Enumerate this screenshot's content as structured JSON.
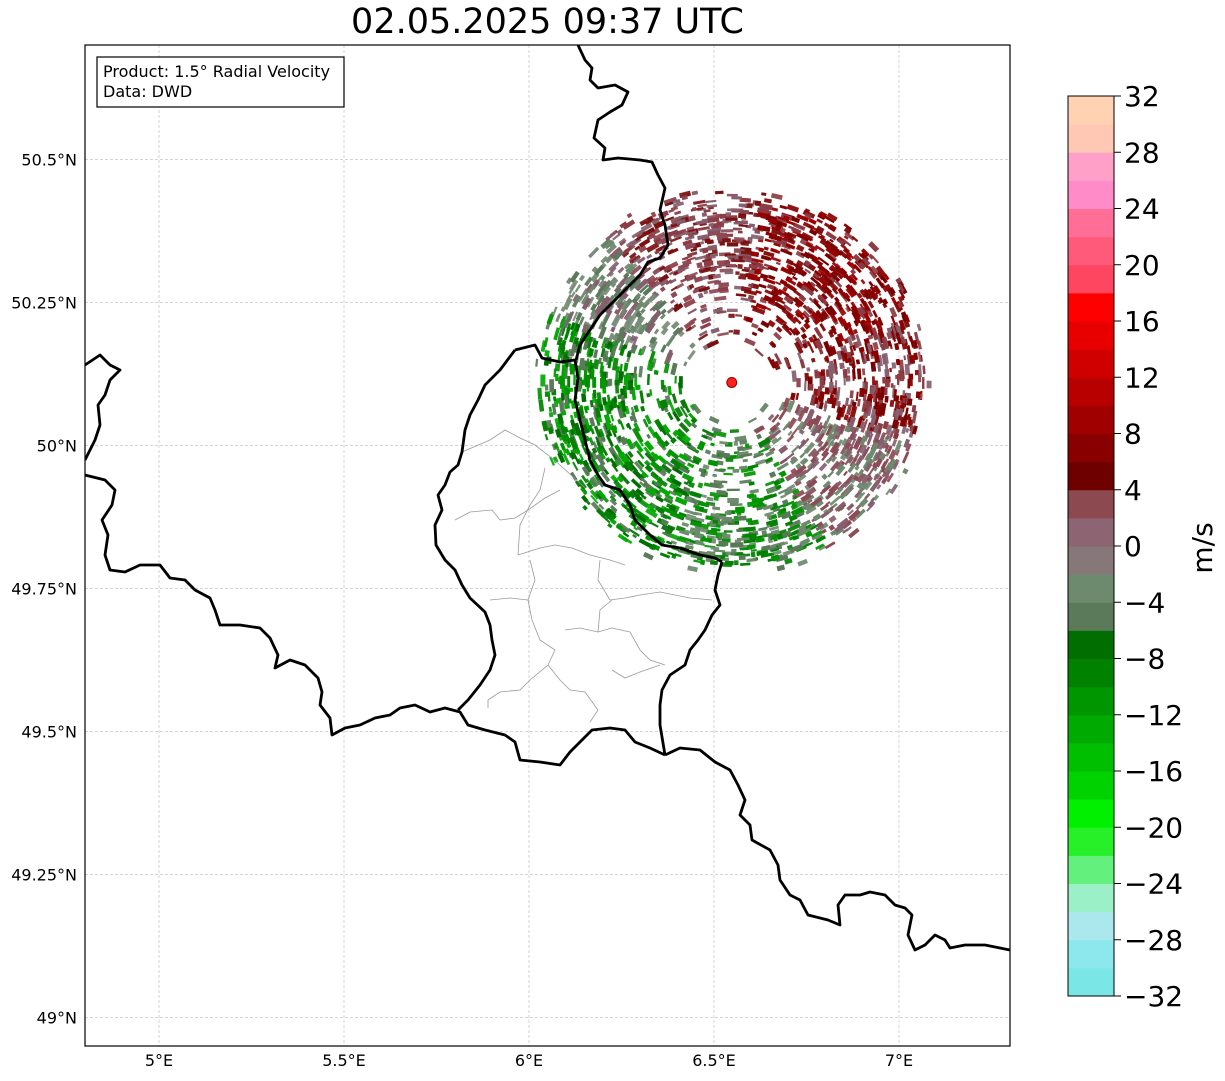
{
  "title": "02.05.2025 09:37 UTC",
  "info": {
    "product": "Product: 1.5° Radial Velocity",
    "data": "Data: DWD"
  },
  "axes": {
    "lon_range": [
      4.8,
      7.3
    ],
    "lat_range": [
      48.95,
      50.7
    ],
    "x_ticks": [
      {
        "value": 5.0,
        "label": "5°E"
      },
      {
        "value": 5.5,
        "label": "5.5°E"
      },
      {
        "value": 6.0,
        "label": "6°E"
      },
      {
        "value": 6.5,
        "label": "6.5°E"
      },
      {
        "value": 7.0,
        "label": "7°E"
      }
    ],
    "y_ticks": [
      {
        "value": 49.0,
        "label": "49°N"
      },
      {
        "value": 49.25,
        "label": "49.25°N"
      },
      {
        "value": 49.5,
        "label": "49.5°N"
      },
      {
        "value": 49.75,
        "label": "49.75°N"
      },
      {
        "value": 50.0,
        "label": "50°N"
      },
      {
        "value": 50.25,
        "label": "50.25°N"
      },
      {
        "value": 50.5,
        "label": "50.5°N"
      }
    ],
    "grid": true
  },
  "radar_site": {
    "lon": 6.548,
    "lat": 50.11,
    "color": "#ff2020"
  },
  "colorbar": {
    "label": "m/s",
    "range": [
      -32,
      32
    ],
    "ticks": [
      {
        "value": 32,
        "label": "32"
      },
      {
        "value": 28,
        "label": "28"
      },
      {
        "value": 24,
        "label": "24"
      },
      {
        "value": 20,
        "label": "20"
      },
      {
        "value": 16,
        "label": "16"
      },
      {
        "value": 12,
        "label": "12"
      },
      {
        "value": 8,
        "label": "8"
      },
      {
        "value": 4,
        "label": "4"
      },
      {
        "value": 0,
        "label": "0"
      },
      {
        "value": -4,
        "label": "−4"
      },
      {
        "value": -8,
        "label": "−8"
      },
      {
        "value": -12,
        "label": "−12"
      },
      {
        "value": -16,
        "label": "−16"
      },
      {
        "value": -20,
        "label": "−20"
      },
      {
        "value": -24,
        "label": "−24"
      },
      {
        "value": -28,
        "label": "−28"
      },
      {
        "value": -32,
        "label": "−32"
      }
    ],
    "colors": [
      "#7ae6e6",
      "#8ce8ec",
      "#aae8ee",
      "#9cf0c8",
      "#64f07c",
      "#28f028",
      "#00f000",
      "#00d200",
      "#00be00",
      "#00aa00",
      "#009600",
      "#008200",
      "#006e00",
      "#5a7a5a",
      "#6e8a6e",
      "#867878",
      "#8c6472",
      "#8c4a50",
      "#6e0000",
      "#880000",
      "#a00000",
      "#b80000",
      "#d00000",
      "#e80000",
      "#ff0000",
      "#ff4660",
      "#ff5a7a",
      "#ff6e96",
      "#ff8cc8",
      "#ffa0c8",
      "#ffc8b4",
      "#ffd2b4"
    ]
  },
  "map": {
    "border_color": "#000000",
    "subdivision_color": "#999999"
  }
}
